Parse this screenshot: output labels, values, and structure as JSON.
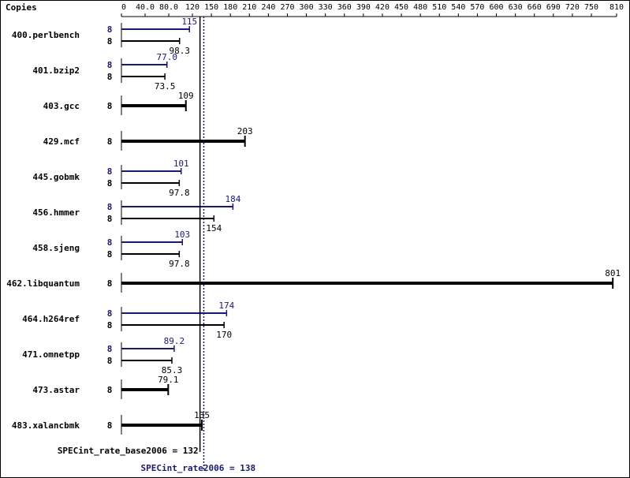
{
  "chart_data": {
    "type": "bar",
    "orientation": "horizontal",
    "copies_label": "Copies",
    "x_ticks": [
      "0",
      "40.0",
      "80.0",
      "120",
      "150",
      "180",
      "210",
      "240",
      "270",
      "300",
      "330",
      "360",
      "390",
      "420",
      "450",
      "480",
      "510",
      "540",
      "570",
      "600",
      "630",
      "660",
      "690",
      "720",
      "750",
      "810"
    ],
    "xlim": [
      0,
      810
    ],
    "series": [
      {
        "name": "SPECint_rate2006",
        "color": "#191970"
      },
      {
        "name": "SPECint_rate_base2006",
        "color": "#000000"
      }
    ],
    "benchmarks": [
      {
        "name": "400.perlbench",
        "peak": {
          "copies": "8",
          "value": 115,
          "label": "115"
        },
        "base": {
          "copies": "8",
          "value": 98.3,
          "label": "98.3"
        }
      },
      {
        "name": "401.bzip2",
        "peak": {
          "copies": "8",
          "value": 77.0,
          "label": "77.0"
        },
        "base": {
          "copies": "8",
          "value": 73.5,
          "label": "73.5"
        }
      },
      {
        "name": "403.gcc",
        "base": {
          "copies": "8",
          "value": 109,
          "label": "109"
        }
      },
      {
        "name": "429.mcf",
        "base": {
          "copies": "8",
          "value": 203,
          "label": "203"
        }
      },
      {
        "name": "445.gobmk",
        "peak": {
          "copies": "8",
          "value": 101,
          "label": "101"
        },
        "base": {
          "copies": "8",
          "value": 97.8,
          "label": "97.8"
        }
      },
      {
        "name": "456.hmmer",
        "peak": {
          "copies": "8",
          "value": 184,
          "label": "184"
        },
        "base": {
          "copies": "8",
          "value": 154,
          "label": "154"
        }
      },
      {
        "name": "458.sjeng",
        "peak": {
          "copies": "8",
          "value": 103,
          "label": "103"
        },
        "base": {
          "copies": "8",
          "value": 97.8,
          "label": "97.8"
        }
      },
      {
        "name": "462.libquantum",
        "base": {
          "copies": "8",
          "value": 801,
          "label": "801"
        }
      },
      {
        "name": "464.h264ref",
        "peak": {
          "copies": "8",
          "value": 174,
          "label": "174"
        },
        "base": {
          "copies": "8",
          "value": 170,
          "label": "170"
        }
      },
      {
        "name": "471.omnetpp",
        "peak": {
          "copies": "8",
          "value": 89.2,
          "label": "89.2"
        },
        "base": {
          "copies": "8",
          "value": 85.3,
          "label": "85.3"
        }
      },
      {
        "name": "473.astar",
        "base": {
          "copies": "8",
          "value": 79.1,
          "label": "79.1"
        }
      },
      {
        "name": "483.xalancbmk",
        "base": {
          "copies": "8",
          "value": 135,
          "label": "135"
        }
      }
    ],
    "summary": {
      "base": {
        "label": "SPECint_rate_base2006 = 132",
        "value": 132
      },
      "peak": {
        "label": "SPECint_rate2006 = 138",
        "value": 138
      }
    }
  }
}
